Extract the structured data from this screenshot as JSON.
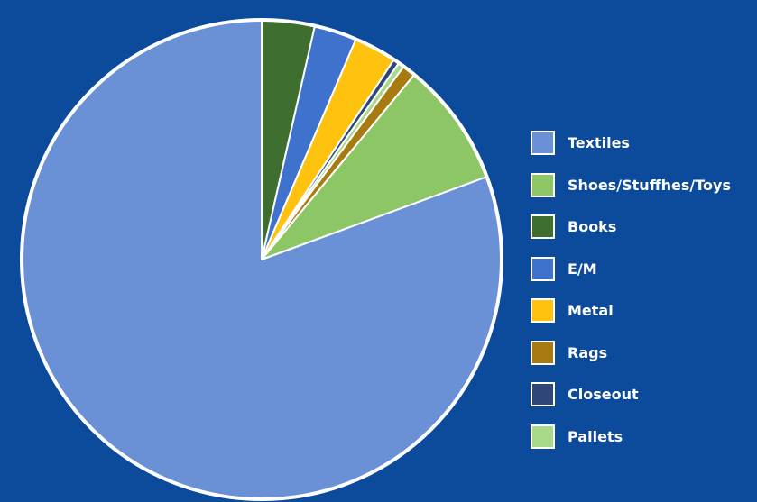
{
  "chart_data": {
    "type": "pie",
    "title": "",
    "background": "#0c4a9c",
    "legend_position": "right",
    "slice_order": [
      "Books",
      "E/M",
      "Metal",
      "Closeout",
      "Pallets",
      "Rags",
      "Shoes/Stuffhes/Toys",
      "Textiles"
    ],
    "series": [
      {
        "values": [
          {
            "label": "Textiles",
            "value": 81.5,
            "color": "#6a90d6"
          },
          {
            "label": "Shoes/Stuffhes/Toys",
            "value": 8.5,
            "color": "#8cc665"
          },
          {
            "label": "Books",
            "value": 3.6,
            "color": "#3f6f2e"
          },
          {
            "label": "E/M",
            "value": 2.9,
            "color": "#3f72cc"
          },
          {
            "label": "Metal",
            "value": 2.9,
            "color": "#ffc20e"
          },
          {
            "label": "Rags",
            "value": 0.9,
            "color": "#a77a12"
          },
          {
            "label": "Closeout",
            "value": 0.4,
            "color": "#2e4779"
          },
          {
            "label": "Pallets",
            "value": 0.4,
            "color": "#a9d98a"
          }
        ]
      }
    ]
  },
  "legend": {
    "items": [
      {
        "label": "Textiles",
        "color": "#6a90d6"
      },
      {
        "label": "Shoes/Stuffhes/Toys",
        "color": "#8cc665"
      },
      {
        "label": "Books",
        "color": "#3f6f2e"
      },
      {
        "label": "E/M",
        "color": "#3f72cc"
      },
      {
        "label": "Metal",
        "color": "#ffc20e"
      },
      {
        "label": "Rags",
        "color": "#a77a12"
      },
      {
        "label": "Closeout",
        "color": "#2e4779"
      },
      {
        "label": "Pallets",
        "color": "#a9d98a"
      }
    ]
  }
}
